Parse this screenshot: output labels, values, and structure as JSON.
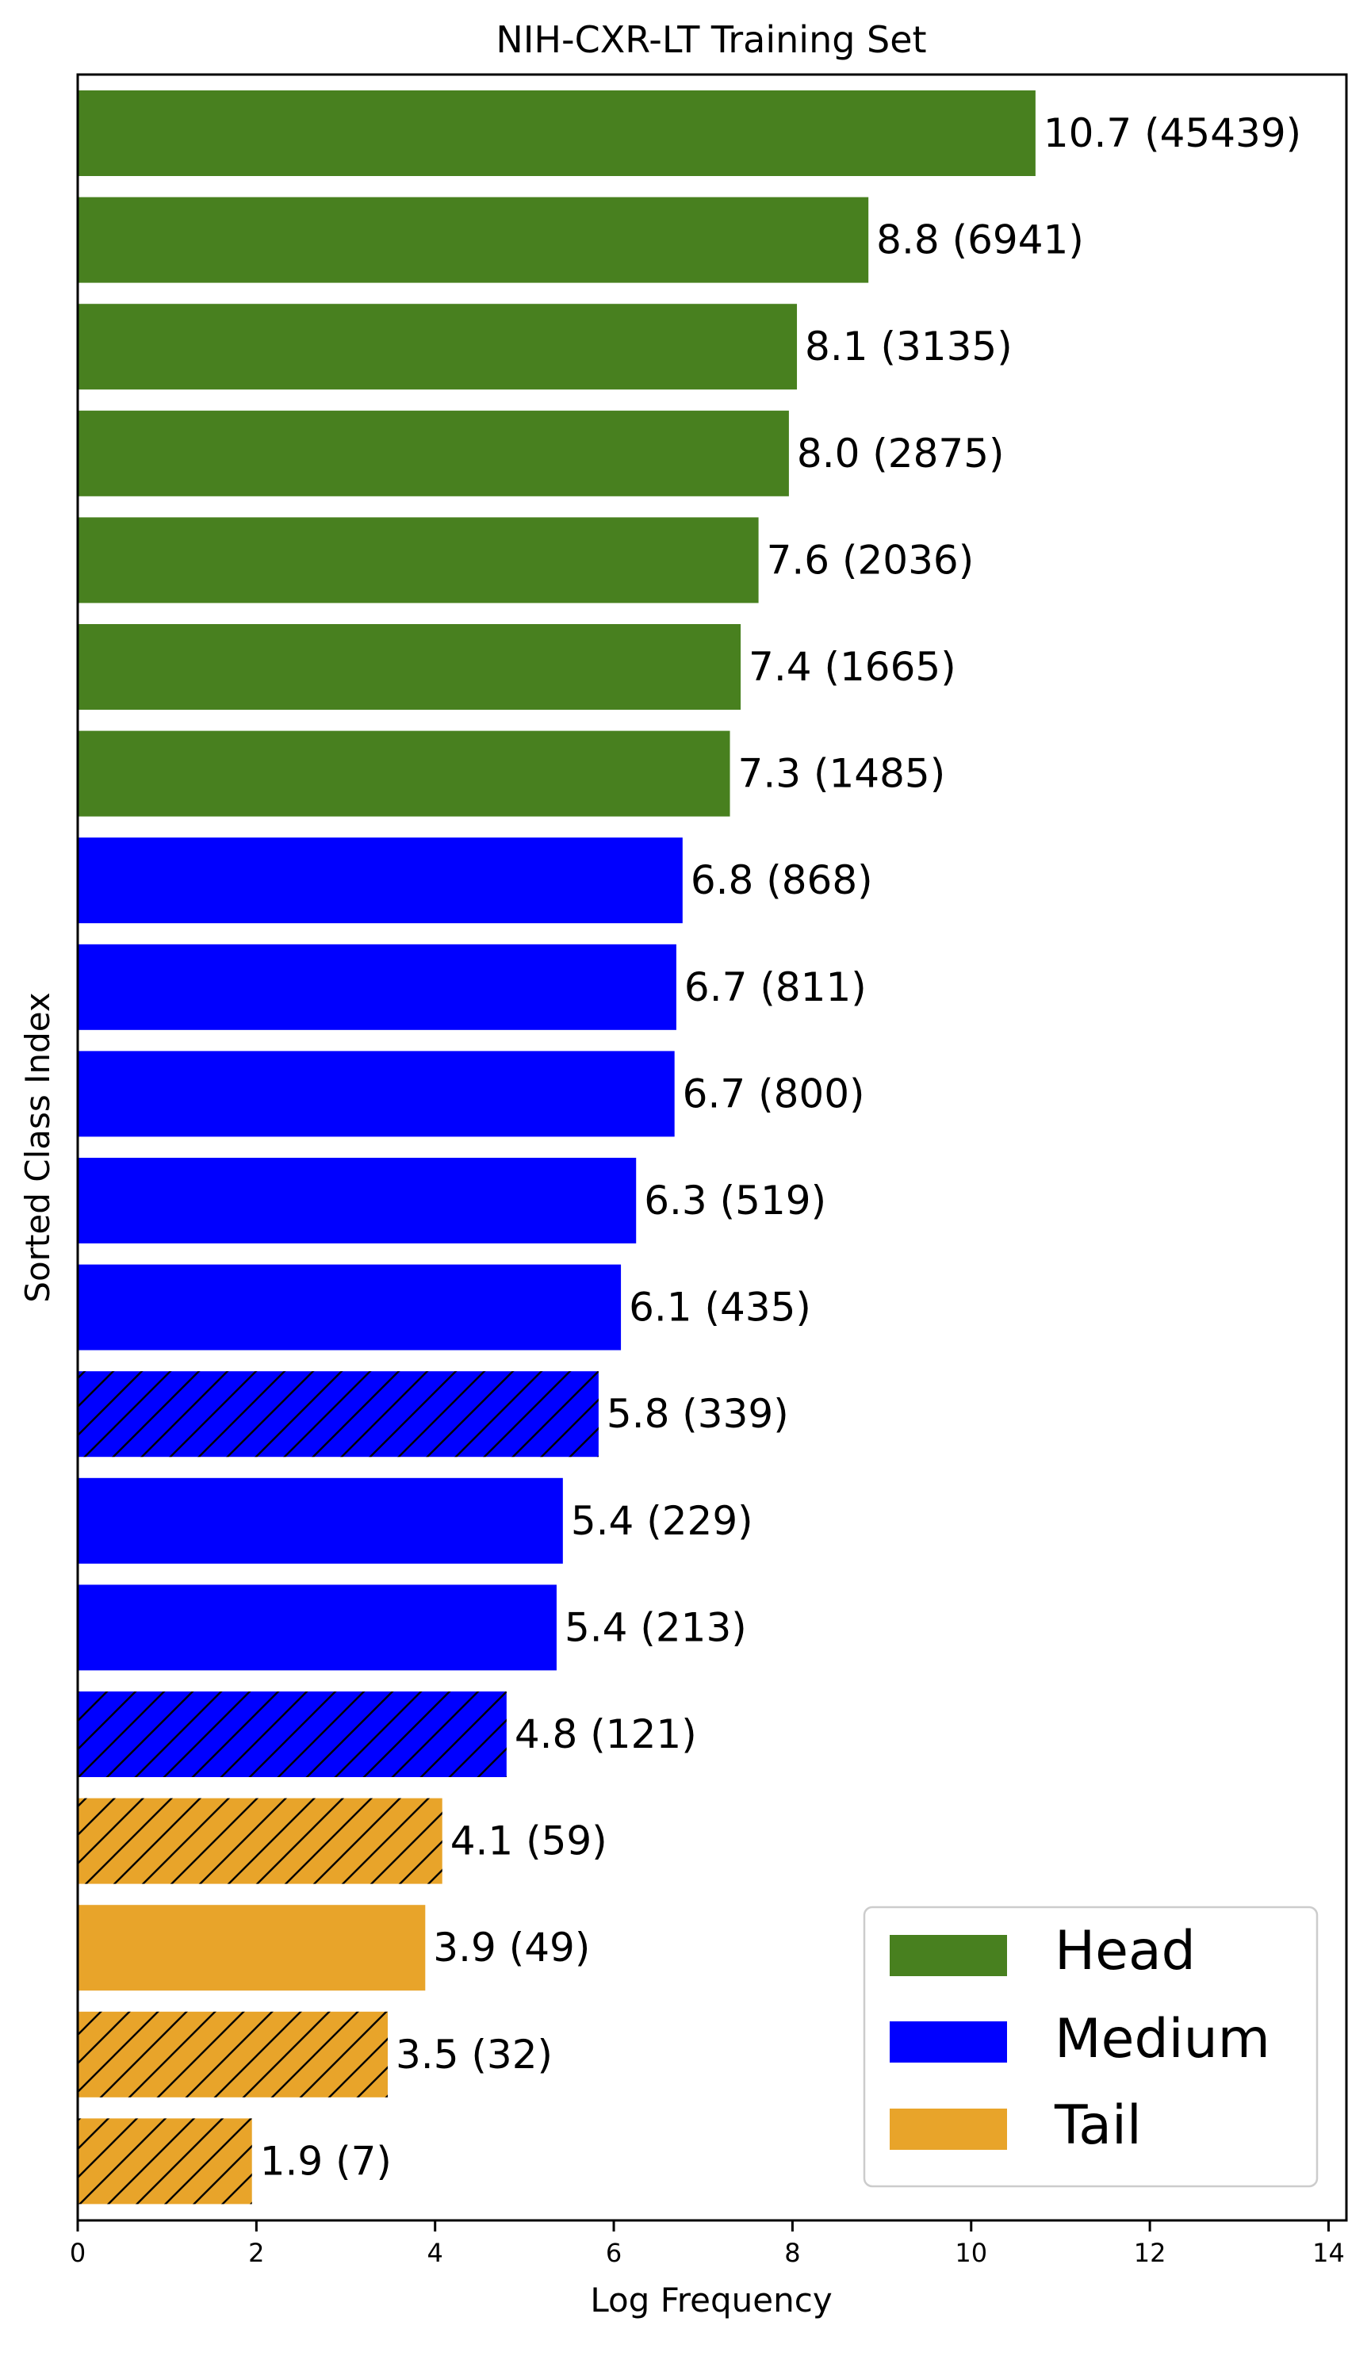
{
  "chart_data": {
    "type": "bar",
    "orientation": "horizontal",
    "title": "NIH-CXR-LT Training Set",
    "xlabel": "Log Frequency",
    "ylabel": "Sorted Class Index",
    "xlim": [
      0,
      14.2
    ],
    "xticks": [
      0,
      2,
      4,
      6,
      8,
      10,
      12,
      14
    ],
    "grid": false,
    "legend_position": "bottom-right",
    "groups": [
      {
        "name": "Head",
        "color": "#48801f"
      },
      {
        "name": "Medium",
        "color": "#0000ff"
      },
      {
        "name": "Tail",
        "color": "#e8a42a"
      }
    ],
    "bars": [
      {
        "value": 10.72,
        "count": 45439,
        "label": "10.7 (45439)",
        "group": "Head",
        "hatched": false
      },
      {
        "value": 8.85,
        "count": 6941,
        "label": "8.8 (6941)",
        "group": "Head",
        "hatched": false
      },
      {
        "value": 8.05,
        "count": 3135,
        "label": "8.1 (3135)",
        "group": "Head",
        "hatched": false
      },
      {
        "value": 7.96,
        "count": 2875,
        "label": "8.0 (2875)",
        "group": "Head",
        "hatched": false
      },
      {
        "value": 7.62,
        "count": 2036,
        "label": "7.6 (2036)",
        "group": "Head",
        "hatched": false
      },
      {
        "value": 7.42,
        "count": 1665,
        "label": "7.4 (1665)",
        "group": "Head",
        "hatched": false
      },
      {
        "value": 7.3,
        "count": 1485,
        "label": "7.3 (1485)",
        "group": "Head",
        "hatched": false
      },
      {
        "value": 6.77,
        "count": 868,
        "label": "6.8 (868)",
        "group": "Medium",
        "hatched": false
      },
      {
        "value": 6.7,
        "count": 811,
        "label": "6.7 (811)",
        "group": "Medium",
        "hatched": false
      },
      {
        "value": 6.68,
        "count": 800,
        "label": "6.7 (800)",
        "group": "Medium",
        "hatched": false
      },
      {
        "value": 6.25,
        "count": 519,
        "label": "6.3 (519)",
        "group": "Medium",
        "hatched": false
      },
      {
        "value": 6.08,
        "count": 435,
        "label": "6.1 (435)",
        "group": "Medium",
        "hatched": false
      },
      {
        "value": 5.83,
        "count": 339,
        "label": "5.8 (339)",
        "group": "Medium",
        "hatched": true
      },
      {
        "value": 5.43,
        "count": 229,
        "label": "5.4 (229)",
        "group": "Medium",
        "hatched": false
      },
      {
        "value": 5.36,
        "count": 213,
        "label": "5.4 (213)",
        "group": "Medium",
        "hatched": false
      },
      {
        "value": 4.8,
        "count": 121,
        "label": "4.8 (121)",
        "group": "Medium",
        "hatched": true
      },
      {
        "value": 4.08,
        "count": 59,
        "label": "4.1 (59)",
        "group": "Tail",
        "hatched": true
      },
      {
        "value": 3.89,
        "count": 49,
        "label": "3.9 (49)",
        "group": "Tail",
        "hatched": false
      },
      {
        "value": 3.47,
        "count": 32,
        "label": "3.5 (32)",
        "group": "Tail",
        "hatched": true
      },
      {
        "value": 1.95,
        "count": 7,
        "label": "1.9 (7)",
        "group": "Tail",
        "hatched": true
      }
    ]
  }
}
